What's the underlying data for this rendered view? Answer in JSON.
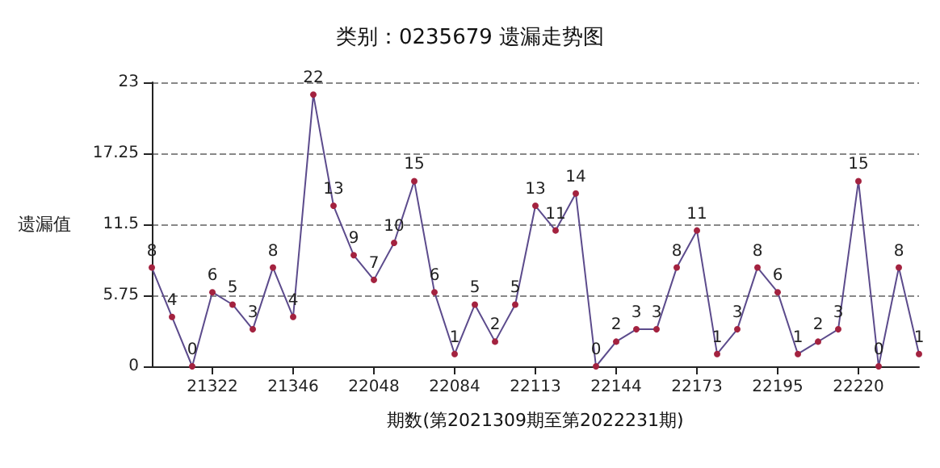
{
  "chart_data": {
    "type": "line",
    "title": "类别：0235679 遗漏走势图",
    "xlabel": "期数(第2021309期至第2022231期)",
    "ylabel": "遗漏值",
    "categories": [
      null,
      null,
      null,
      "21322",
      null,
      null,
      null,
      "21346",
      null,
      null,
      null,
      "22048",
      null,
      null,
      null,
      "22084",
      null,
      null,
      null,
      "22113",
      null,
      null,
      null,
      "22144",
      null,
      null,
      null,
      "22173",
      null,
      null,
      null,
      "22195",
      null,
      null,
      null,
      "22220",
      null,
      null,
      null
    ],
    "series": [
      {
        "color": "#5c4b8c",
        "values": [
          8,
          4,
          0,
          6,
          5,
          3,
          8,
          4,
          22,
          13,
          9,
          7,
          10,
          15,
          6,
          1,
          5,
          2,
          5,
          13,
          11,
          14,
          0,
          2,
          3,
          3,
          8,
          11,
          1,
          3,
          8,
          6,
          1,
          2,
          3,
          15,
          0,
          8,
          1
        ]
      }
    ],
    "ylim": [
      0,
      23
    ],
    "yticks": [
      0,
      5.75,
      11.5,
      17.25,
      23
    ],
    "grid": "y",
    "marker": "circle",
    "line_style": "solid",
    "data_labels": true
  }
}
